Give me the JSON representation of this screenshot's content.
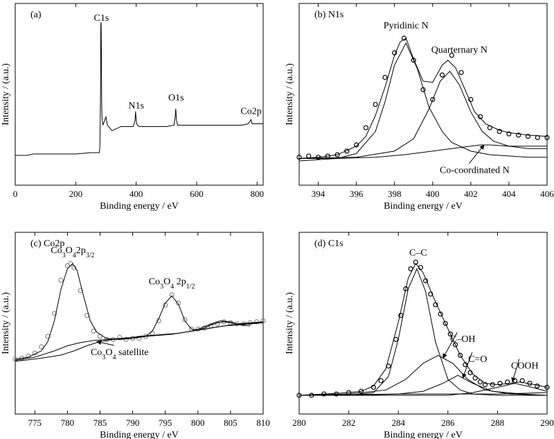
{
  "colors": {
    "axis": "#000000",
    "fit_line": "#000000",
    "raw_marker_black": "#000000",
    "raw_marker_grey": "#888888"
  },
  "chart_data": [
    {
      "type": "line",
      "panel_tag": "(a)",
      "xlabel": "Binding energy / eV",
      "ylabel": "Intensity / (a.u.)",
      "xlim": [
        0,
        820
      ],
      "xticks": [
        0,
        200,
        400,
        600,
        800
      ],
      "yticks": [],
      "grid": false,
      "y_units": "arbitrary, relative 0-1",
      "ylim": [
        0,
        1
      ],
      "series": [
        {
          "name": "",
          "style": "line",
          "x": [
            0,
            10,
            20,
            40,
            60,
            80,
            100,
            150,
            200,
            250,
            278,
            280,
            282,
            283,
            284,
            285,
            286,
            287,
            288,
            290,
            295,
            300,
            305,
            320,
            350,
            390,
            396,
            398,
            400,
            402,
            404,
            410,
            450,
            500,
            525,
            529,
            531,
            533,
            537,
            560,
            600,
            650,
            700,
            750,
            770,
            777,
            780,
            783,
            790,
            820
          ],
          "y": [
            0.02,
            0.02,
            0.02,
            0.02,
            0.03,
            0.03,
            0.03,
            0.03,
            0.03,
            0.04,
            0.04,
            0.08,
            0.45,
            0.97,
            0.99,
            0.75,
            0.4,
            0.3,
            0.27,
            0.24,
            0.27,
            0.3,
            0.24,
            0.2,
            0.23,
            0.23,
            0.27,
            0.34,
            0.28,
            0.25,
            0.24,
            0.23,
            0.23,
            0.23,
            0.24,
            0.3,
            0.36,
            0.28,
            0.24,
            0.24,
            0.24,
            0.24,
            0.24,
            0.24,
            0.25,
            0.27,
            0.28,
            0.25,
            0.25,
            0.25
          ]
        }
      ],
      "annotations": [
        {
          "text": "C1s",
          "x": 285,
          "y": 1.0
        },
        {
          "text": "N1s",
          "x": 400,
          "y": 0.36
        },
        {
          "text": "O1s",
          "x": 532,
          "y": 0.42
        },
        {
          "text": "Co2p",
          "x": 780,
          "y": 0.32
        }
      ]
    },
    {
      "type": "line",
      "panel_tag": "(b) N1s",
      "xlabel": "Binding energy / eV",
      "ylabel": "Intensity / (a.u.)",
      "xlim": [
        393,
        406
      ],
      "xticks": [
        394,
        396,
        398,
        400,
        402,
        404,
        406
      ],
      "yticks": [],
      "grid": false,
      "y_units": "arbitrary, relative 0-1",
      "ylim": [
        0,
        1
      ],
      "series": [
        {
          "name": "",
          "style": "markers-open",
          "x": [
            393.0,
            393.5,
            394.0,
            394.5,
            395.0,
            395.5,
            396.0,
            396.5,
            397.0,
            397.5,
            398.0,
            398.5,
            399.0,
            399.5,
            400.0,
            400.5,
            401.0,
            401.5,
            402.0,
            402.5,
            403.0,
            403.5,
            404.0,
            404.5,
            405.0,
            405.5,
            406.0
          ],
          "y": [
            0.03,
            0.04,
            0.03,
            0.04,
            0.05,
            0.08,
            0.13,
            0.27,
            0.46,
            0.68,
            0.88,
            1.0,
            0.82,
            0.58,
            0.5,
            0.7,
            0.86,
            0.72,
            0.5,
            0.36,
            0.27,
            0.24,
            0.22,
            0.21,
            0.2,
            0.19,
            0.19
          ]
        },
        {
          "name": "",
          "style": "line",
          "x": [
            393.0,
            394.0,
            395.0,
            396.0,
            396.5,
            397.0,
            397.5,
            398.0,
            398.3,
            398.6,
            399.0,
            399.5,
            400.0,
            400.5,
            400.8,
            401.2,
            401.7,
            402.2,
            402.8,
            403.5,
            404.0,
            405.0,
            406.0
          ],
          "y": [
            0.02,
            0.03,
            0.05,
            0.12,
            0.2,
            0.37,
            0.6,
            0.86,
            0.97,
            1.0,
            0.83,
            0.65,
            0.64,
            0.78,
            0.82,
            0.76,
            0.58,
            0.4,
            0.3,
            0.25,
            0.23,
            0.21,
            0.2
          ]
        },
        {
          "name": "",
          "style": "line",
          "x": [
            393.0,
            394.0,
            395.0,
            396.0,
            397.0,
            397.5,
            398.0,
            398.6,
            399.2,
            399.8,
            400.5,
            401.0,
            402.0,
            403.0,
            404.0,
            405.0,
            406.0
          ],
          "y": [
            0.0,
            0.01,
            0.02,
            0.06,
            0.24,
            0.48,
            0.78,
            0.96,
            0.75,
            0.44,
            0.24,
            0.15,
            0.08,
            0.05,
            0.04,
            0.03,
            0.03
          ]
        },
        {
          "name": "",
          "style": "line",
          "x": [
            393.0,
            396.0,
            398.0,
            399.0,
            399.8,
            400.4,
            400.9,
            401.4,
            402.0,
            402.6,
            403.2,
            404.0,
            405.0,
            406.0
          ],
          "y": [
            0.02,
            0.03,
            0.08,
            0.18,
            0.42,
            0.65,
            0.73,
            0.62,
            0.4,
            0.24,
            0.16,
            0.12,
            0.1,
            0.1
          ]
        },
        {
          "name": "",
          "style": "line",
          "x": [
            393.0,
            395.0,
            397.0,
            398.5,
            400.0,
            401.0,
            402.0,
            402.5,
            403.0,
            404.0,
            405.0,
            406.0
          ],
          "y": [
            0.02,
            0.02,
            0.03,
            0.05,
            0.08,
            0.1,
            0.12,
            0.13,
            0.13,
            0.12,
            0.12,
            0.12
          ]
        }
      ],
      "annotations": [
        {
          "text": "Pyridinic N",
          "x": 398.6,
          "y": 1.08
        },
        {
          "text": "Quarternary N",
          "x": 401.4,
          "y": 0.88
        },
        {
          "text": "Co-coordinated N",
          "x": 402.2,
          "y": -0.1,
          "arrow_to_x": 402.7,
          "arrow_to_y": 0.13
        }
      ]
    },
    {
      "type": "line",
      "panel_tag": "(c) Co2p",
      "xlabel": "Binding energy / eV",
      "ylabel": "Intensity / (a.u.)",
      "xlim": [
        772,
        810
      ],
      "xticks": [
        775,
        780,
        785,
        790,
        795,
        800,
        805,
        810
      ],
      "yticks": [],
      "grid": false,
      "y_units": "arbitrary, relative 0-1",
      "ylim": [
        0,
        1
      ],
      "series": [
        {
          "name": "",
          "style": "markers-grey",
          "x": [
            772,
            773,
            774,
            775,
            776,
            777,
            778,
            779,
            780,
            780.5,
            781,
            782,
            783,
            784,
            785,
            786,
            787,
            788,
            789,
            790,
            791,
            792,
            793,
            794,
            795,
            796,
            797,
            798,
            799,
            800,
            801,
            802,
            803,
            804,
            805,
            806,
            807,
            808,
            809,
            810
          ],
          "y": [
            0.08,
            0.09,
            0.11,
            0.14,
            0.2,
            0.3,
            0.52,
            0.84,
            0.98,
            1.0,
            0.96,
            0.74,
            0.5,
            0.35,
            0.3,
            0.27,
            0.27,
            0.29,
            0.27,
            0.28,
            0.28,
            0.3,
            0.33,
            0.45,
            0.6,
            0.7,
            0.62,
            0.46,
            0.37,
            0.37,
            0.38,
            0.4,
            0.42,
            0.44,
            0.43,
            0.42,
            0.42,
            0.43,
            0.44,
            0.45
          ]
        },
        {
          "name": "",
          "style": "line",
          "x": [
            772,
            774,
            776,
            777,
            778,
            779,
            780,
            780.8,
            781.5,
            782.5,
            783.5,
            784.5,
            786,
            788,
            790,
            792,
            793,
            794,
            795,
            796,
            797,
            798,
            799,
            800,
            801,
            802,
            803,
            804,
            805,
            806,
            808,
            810
          ],
          "y": [
            0.08,
            0.1,
            0.16,
            0.25,
            0.45,
            0.75,
            0.95,
            1.0,
            0.93,
            0.68,
            0.45,
            0.34,
            0.28,
            0.27,
            0.28,
            0.3,
            0.35,
            0.47,
            0.62,
            0.69,
            0.61,
            0.45,
            0.37,
            0.36,
            0.38,
            0.41,
            0.43,
            0.44,
            0.43,
            0.42,
            0.43,
            0.44
          ]
        },
        {
          "name": "",
          "style": "line",
          "x": [
            772,
            775,
            778,
            780,
            782,
            784,
            786,
            788,
            790,
            792,
            794,
            796,
            798,
            800,
            802,
            804,
            806,
            808,
            810
          ],
          "y": [
            0.07,
            0.1,
            0.16,
            0.21,
            0.24,
            0.26,
            0.27,
            0.28,
            0.29,
            0.3,
            0.31,
            0.32,
            0.34,
            0.36,
            0.38,
            0.4,
            0.41,
            0.42,
            0.43
          ]
        },
        {
          "name": "",
          "style": "line",
          "x": [
            772,
            776,
            779,
            781,
            783,
            785,
            787,
            789,
            791,
            793,
            795,
            797,
            799,
            801,
            803,
            805,
            807,
            809,
            810
          ],
          "y": [
            0.06,
            0.09,
            0.12,
            0.16,
            0.21,
            0.25,
            0.27,
            0.28,
            0.3,
            0.31,
            0.32,
            0.33,
            0.35,
            0.37,
            0.39,
            0.41,
            0.42,
            0.43,
            0.44
          ]
        },
        {
          "name": "",
          "style": "line",
          "x": [
            799,
            800.5,
            802,
            803.5,
            805,
            806.5,
            808
          ],
          "y": [
            0.35,
            0.38,
            0.42,
            0.45,
            0.44,
            0.41,
            0.4
          ]
        }
      ],
      "annotations": [
        {
          "text_main": "Co",
          "text_sub1": "3",
          "text_main2": "O",
          "text_sub2": "4",
          "text_main3": "2p",
          "text_sub3": "3/2",
          "x": 780.8,
          "y": 1.1
        },
        {
          "text_main": "Co",
          "text_sub1": "3",
          "text_main2": "O",
          "text_sub2": "4",
          "text_main3": " 2p",
          "text_sub3": "1/2",
          "x": 796,
          "y": 0.8
        },
        {
          "text_main": "Co",
          "text_sub1": "3",
          "text_main2": "O",
          "text_sub2": "4",
          "text_main3": " satellite",
          "text_sub3": "",
          "x": 788,
          "y": 0.12,
          "arrow_to_x": 784.5,
          "arrow_to_y": 0.25
        }
      ]
    },
    {
      "type": "line",
      "panel_tag": "(d) C1s",
      "xlabel": "Binding energy / eV",
      "ylabel": "Intensity / (a.u.)",
      "xlim": [
        280,
        290
      ],
      "xticks": [
        280,
        282,
        284,
        286,
        288,
        290
      ],
      "yticks": [],
      "grid": false,
      "y_units": "arbitrary, relative 0-1",
      "ylim": [
        0,
        1
      ],
      "series": [
        {
          "name": "",
          "style": "markers-open",
          "x": [
            280.0,
            280.5,
            281.0,
            281.5,
            282.0,
            282.5,
            283.0,
            283.3,
            283.6,
            283.9,
            284.1,
            284.3,
            284.5,
            284.7,
            284.9,
            285.1,
            285.3,
            285.5,
            285.7,
            285.9,
            286.1,
            286.3,
            286.5,
            286.7,
            286.9,
            287.1,
            287.3,
            287.5,
            287.8,
            288.1,
            288.4,
            288.7,
            289.0,
            289.3,
            289.6,
            290.0
          ],
          "y": [
            0.0,
            0.0,
            0.01,
            0.01,
            0.02,
            0.03,
            0.06,
            0.11,
            0.22,
            0.42,
            0.6,
            0.8,
            0.95,
            1.0,
            0.96,
            0.86,
            0.76,
            0.68,
            0.61,
            0.54,
            0.46,
            0.38,
            0.3,
            0.23,
            0.17,
            0.13,
            0.1,
            0.08,
            0.08,
            0.09,
            0.1,
            0.11,
            0.11,
            0.09,
            0.07,
            0.06
          ]
        },
        {
          "name": "",
          "style": "line",
          "x": [
            280.0,
            281.0,
            282.0,
            282.5,
            283.0,
            283.5,
            284.0,
            284.4,
            284.7,
            285.0,
            285.5,
            286.0,
            286.5,
            287.0,
            287.5,
            288.0,
            288.5,
            288.9,
            289.5,
            290.0
          ],
          "y": [
            0.0,
            0.01,
            0.02,
            0.03,
            0.07,
            0.2,
            0.55,
            0.88,
            0.99,
            0.92,
            0.7,
            0.5,
            0.3,
            0.16,
            0.09,
            0.08,
            0.09,
            0.1,
            0.08,
            0.06
          ]
        },
        {
          "name": "",
          "style": "line",
          "x": [
            280.0,
            282.0,
            283.0,
            283.6,
            284.0,
            284.4,
            284.75,
            285.1,
            285.5,
            286.0,
            286.5,
            287.0,
            288.0,
            290.0
          ],
          "y": [
            0.0,
            0.0,
            0.02,
            0.14,
            0.42,
            0.8,
            0.95,
            0.78,
            0.4,
            0.12,
            0.04,
            0.01,
            0.0,
            0.0
          ]
        },
        {
          "name": "",
          "style": "line",
          "x": [
            280.0,
            282.0,
            283.5,
            284.3,
            285.0,
            285.6,
            286.2,
            286.8,
            287.5,
            288.5,
            290.0
          ],
          "y": [
            0.0,
            0.01,
            0.04,
            0.12,
            0.24,
            0.3,
            0.24,
            0.12,
            0.04,
            0.01,
            0.0
          ]
        },
        {
          "name": "",
          "style": "line",
          "x": [
            280.0,
            284.0,
            285.0,
            285.8,
            286.4,
            287.0,
            287.8,
            289.0,
            290.0
          ],
          "y": [
            0.0,
            0.01,
            0.03,
            0.09,
            0.15,
            0.09,
            0.03,
            0.01,
            0.0
          ]
        },
        {
          "name": "",
          "style": "line",
          "x": [
            280.0,
            286.0,
            287.0,
            288.0,
            288.7,
            289.4,
            290.0
          ],
          "y": [
            0.0,
            0.0,
            0.02,
            0.06,
            0.09,
            0.06,
            0.03
          ]
        },
        {
          "name": "",
          "style": "line",
          "x": [
            280.0,
            282.0,
            284.0,
            286.0,
            288.0,
            290.0
          ],
          "y": [
            0.0,
            0.0,
            0.01,
            0.01,
            0.01,
            0.02
          ]
        }
      ],
      "annotations": [
        {
          "text": "C–C",
          "x": 284.8,
          "y": 1.05
        },
        {
          "text": "C–OH",
          "x": 286.6,
          "y": 0.4,
          "arrow_to_x": 285.8,
          "arrow_to_y": 0.28
        },
        {
          "text": "C=O",
          "x": 287.2,
          "y": 0.25,
          "arrow_to_x": 286.6,
          "arrow_to_y": 0.13
        },
        {
          "text": "COOH",
          "x": 289.1,
          "y": 0.2,
          "arrow_to_x": 288.6,
          "arrow_to_y": 0.1
        }
      ]
    }
  ]
}
